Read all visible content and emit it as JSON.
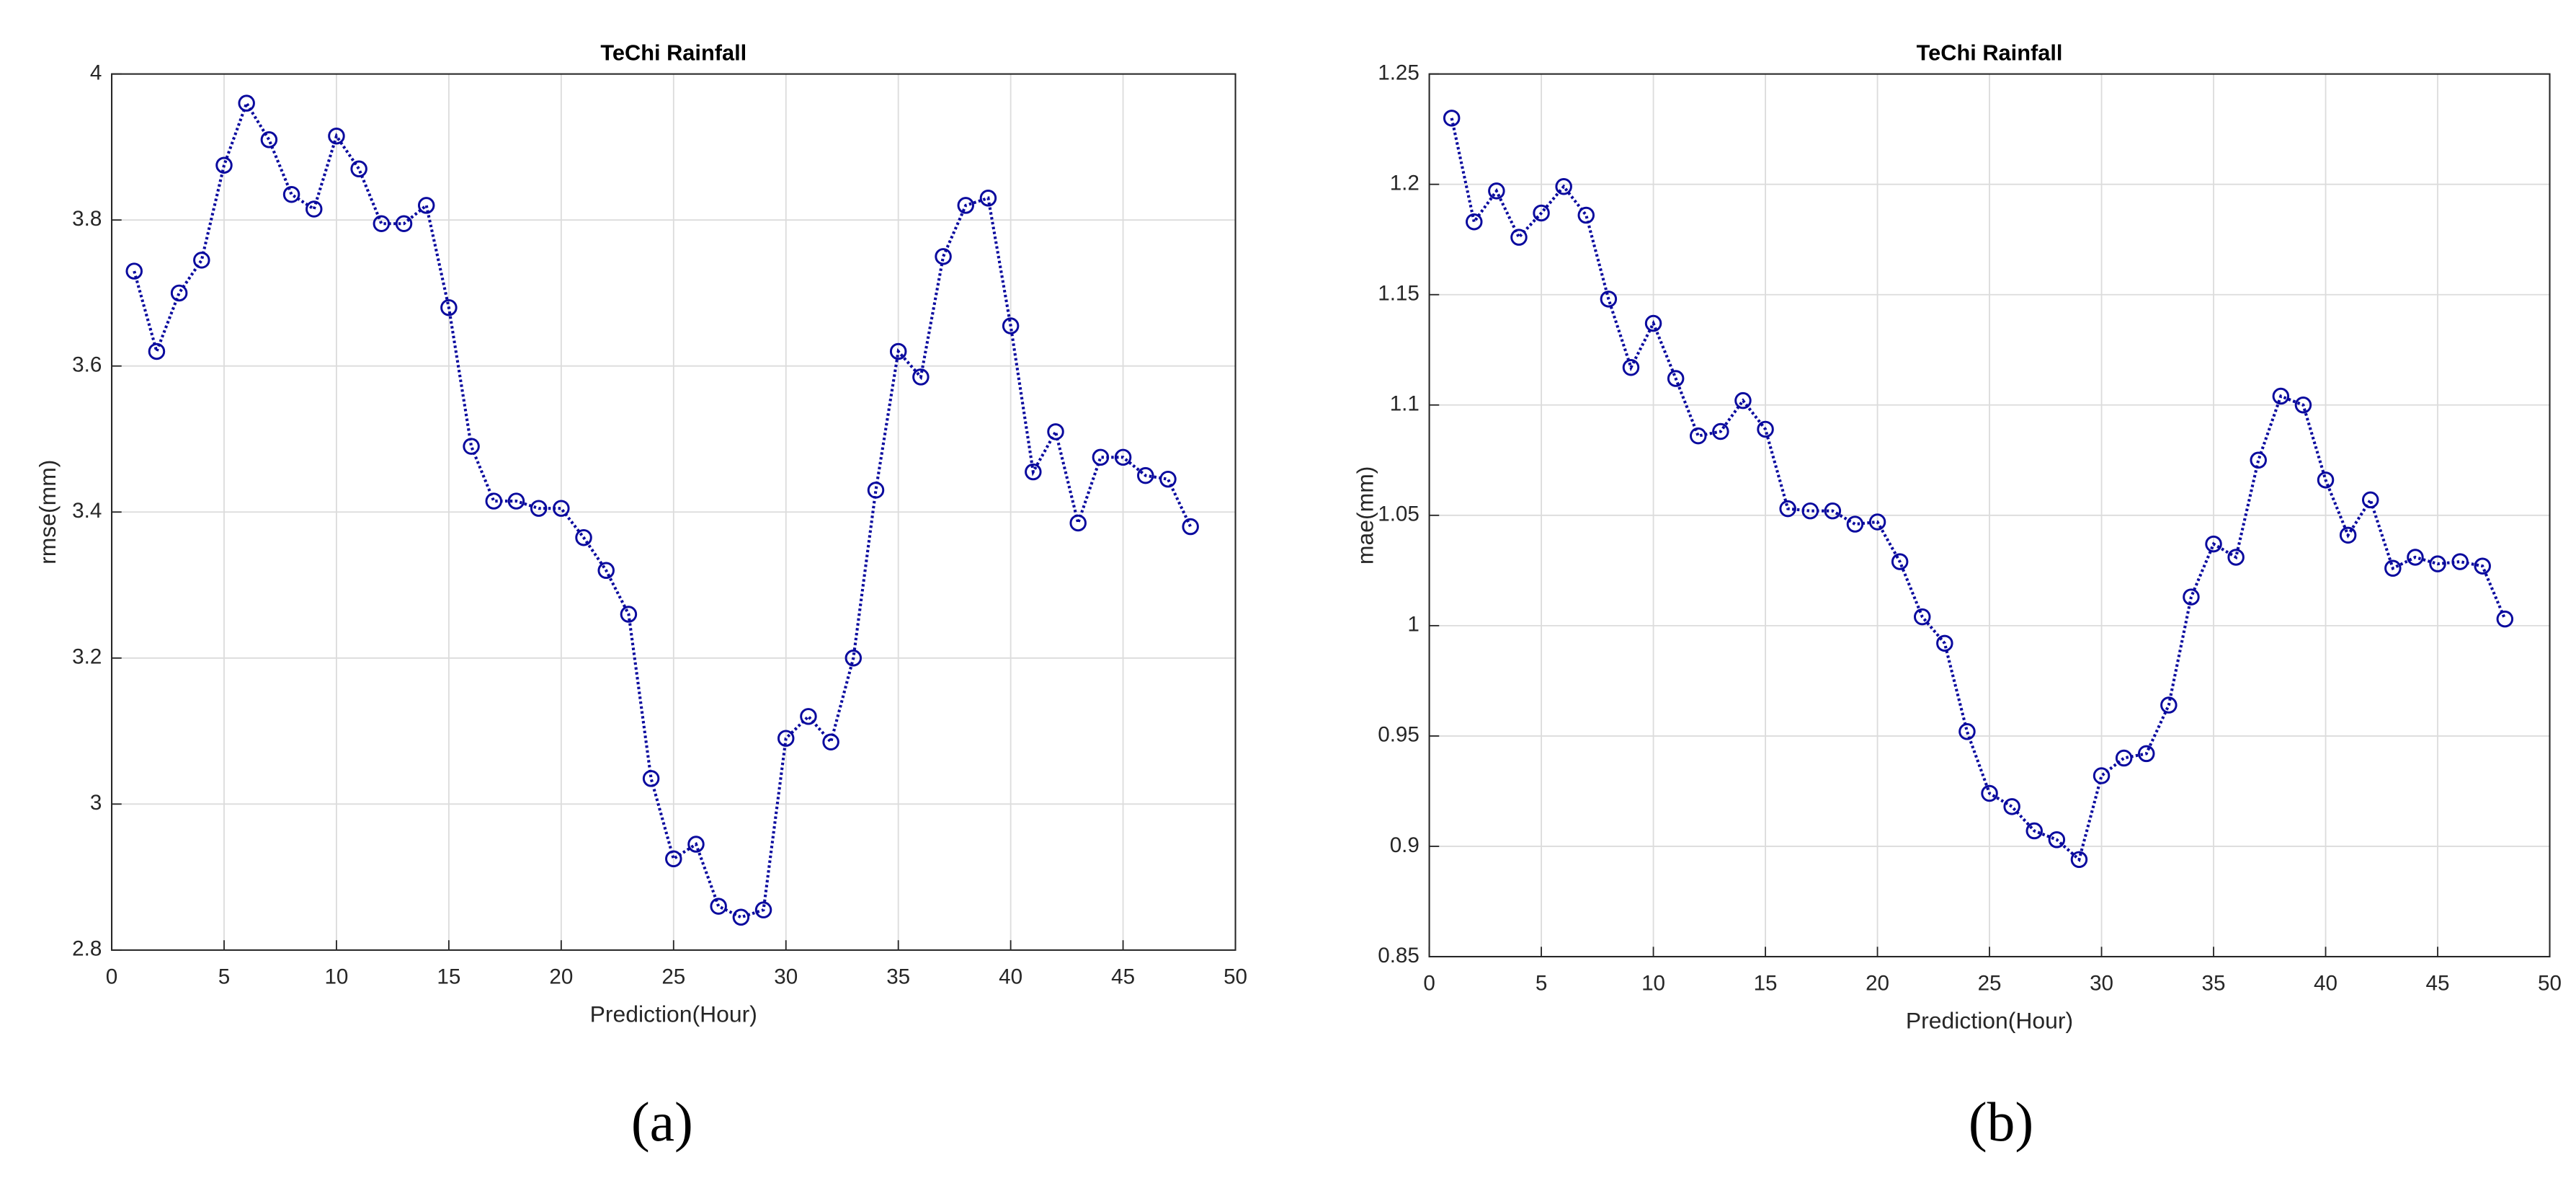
{
  "chart_data": [
    {
      "type": "line",
      "title": "TeChi Rainfall",
      "xlabel": "Prediction(Hour)",
      "ylabel": "rmse(mm)",
      "caption": "(a)",
      "color": "#0a0a9e",
      "grid": true,
      "x": [
        1,
        2,
        3,
        4,
        5,
        6,
        7,
        8,
        9,
        10,
        11,
        12,
        13,
        14,
        15,
        16,
        17,
        18,
        19,
        20,
        21,
        22,
        23,
        24,
        25,
        26,
        27,
        28,
        29,
        30,
        31,
        32,
        33,
        34,
        35,
        36,
        37,
        38,
        39,
        40,
        41,
        42,
        43,
        44,
        45,
        46,
        47,
        48
      ],
      "values": [
        3.73,
        3.62,
        3.7,
        3.745,
        3.875,
        3.96,
        3.91,
        3.835,
        3.815,
        3.915,
        3.87,
        3.795,
        3.795,
        3.82,
        3.68,
        3.49,
        3.415,
        3.415,
        3.405,
        3.405,
        3.365,
        3.32,
        3.26,
        3.035,
        2.925,
        2.945,
        2.86,
        2.845,
        2.855,
        3.09,
        3.12,
        3.085,
        3.2,
        3.43,
        3.62,
        3.585,
        3.75,
        3.82,
        3.83,
        3.655,
        3.455,
        3.51,
        3.385,
        3.475,
        3.475,
        3.45,
        3.445,
        3.38
      ],
      "xlim": [
        0,
        50
      ],
      "xticks": [
        0,
        5,
        10,
        15,
        20,
        25,
        30,
        35,
        40,
        45,
        50
      ],
      "ylim": [
        2.8,
        4
      ],
      "yticks": [
        2.8,
        3,
        3.2,
        3.4,
        3.6,
        3.8,
        4
      ]
    },
    {
      "type": "line",
      "title": "TeChi Rainfall",
      "xlabel": "Prediction(Hour)",
      "ylabel": "mae(mm)",
      "caption": "(b)",
      "color": "#0a0a9e",
      "grid": true,
      "x": [
        1,
        2,
        3,
        4,
        5,
        6,
        7,
        8,
        9,
        10,
        11,
        12,
        13,
        14,
        15,
        16,
        17,
        18,
        19,
        20,
        21,
        22,
        23,
        24,
        25,
        26,
        27,
        28,
        29,
        30,
        31,
        32,
        33,
        34,
        35,
        36,
        37,
        38,
        39,
        40,
        41,
        42,
        43,
        44,
        45,
        46,
        47,
        48
      ],
      "values": [
        1.23,
        1.183,
        1.197,
        1.176,
        1.187,
        1.199,
        1.186,
        1.148,
        1.117,
        1.137,
        1.112,
        1.086,
        1.088,
        1.102,
        1.089,
        1.053,
        1.052,
        1.052,
        1.046,
        1.047,
        1.029,
        1.004,
        0.992,
        0.952,
        0.924,
        0.918,
        0.907,
        0.903,
        0.894,
        0.932,
        0.94,
        0.942,
        0.964,
        1.013,
        1.037,
        1.031,
        1.075,
        1.104,
        1.1,
        1.066,
        1.041,
        1.057,
        1.026,
        1.031,
        1.028,
        1.029,
        1.027,
        1.003
      ],
      "xlim": [
        0,
        50
      ],
      "xticks": [
        0,
        5,
        10,
        15,
        20,
        25,
        30,
        35,
        40,
        45,
        50
      ],
      "ylim": [
        0.85,
        1.25
      ],
      "yticks": [
        0.85,
        0.9,
        0.95,
        1,
        1.05,
        1.1,
        1.15,
        1.2,
        1.25
      ]
    }
  ]
}
